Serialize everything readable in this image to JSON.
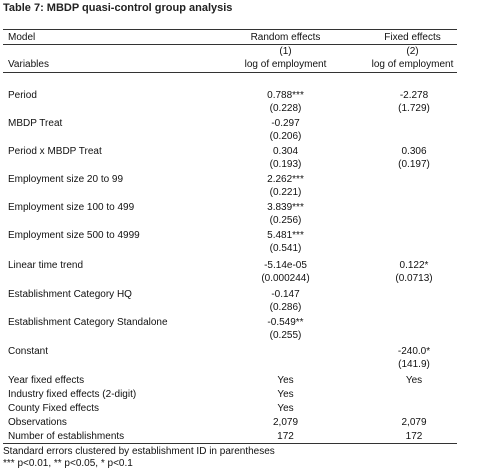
{
  "title": "Table 7: MBDP quasi-control group analysis",
  "header": {
    "model_label": "Model",
    "col1_name": "Random effects",
    "col2_name": "Fixed effects",
    "col1_num": "(1)",
    "col2_num": "(2)",
    "variables_label": "Variables",
    "col1_dep": "log of employment",
    "col2_dep": "log of employment"
  },
  "rows": [
    {
      "label": "Period",
      "c1": "0.788***",
      "c1se": "(0.228)",
      "c2": "-2.278",
      "c2se": "(1.729)"
    },
    {
      "label": "MBDP Treat",
      "c1": "-0.297",
      "c1se": "(0.206)",
      "c2": "",
      "c2se": ""
    },
    {
      "label": "Period x MBDP Treat",
      "c1": "0.304",
      "c1se": "(0.193)",
      "c2": "0.306",
      "c2se": "(0.197)"
    },
    {
      "label": "Employment size 20 to 99",
      "c1": "2.262***",
      "c1se": "(0.221)",
      "c2": "",
      "c2se": ""
    },
    {
      "label": "Employment size 100 to 499",
      "c1": "3.839***",
      "c1se": "(0.256)",
      "c2": "",
      "c2se": ""
    },
    {
      "label": "Employment size 500 to 4999",
      "c1": "5.481***",
      "c1se": "(0.541)",
      "c2": "",
      "c2se": ""
    },
    {
      "label": "Linear time trend",
      "c1": "-5.14e-05",
      "c1se": "(0.000244)",
      "c2": "0.122*",
      "c2se": "(0.0713)"
    },
    {
      "label": "Establishment Category HQ",
      "c1": "-0.147",
      "c1se": "(0.286)",
      "c2": "",
      "c2se": ""
    },
    {
      "label": "Establishment Category Standalone",
      "c1": "-0.549**",
      "c1se": "(0.255)",
      "c2": "",
      "c2se": ""
    },
    {
      "label": "Constant",
      "c1": "",
      "c1se": "",
      "c2": "-240.0*",
      "c2se": "(141.9)"
    }
  ],
  "bottom": [
    {
      "label": "Year fixed effects",
      "c1": "Yes",
      "c2": "Yes"
    },
    {
      "label": "Industry fixed effects (2-digit)",
      "c1": "Yes",
      "c2": ""
    },
    {
      "label": "County Fixed effects",
      "c1": "Yes",
      "c2": ""
    },
    {
      "label": "Observations",
      "c1": "2,079",
      "c2": "2,079"
    },
    {
      "label": "Number of establishments",
      "c1": "172",
      "c2": "172"
    }
  ],
  "footnotes": {
    "line1": "Standard errors clustered by establishment ID in parentheses",
    "line2": "*** p<0.01, ** p<0.05, * p<0.1"
  }
}
